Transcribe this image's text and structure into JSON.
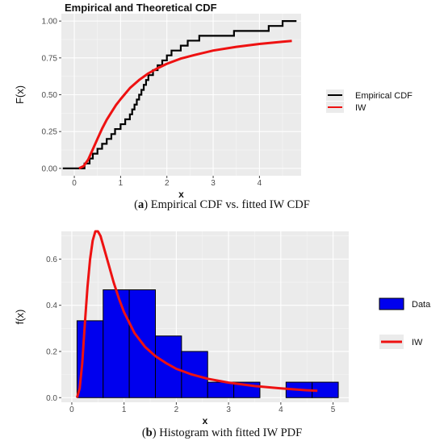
{
  "chart_data": [
    {
      "type": "line",
      "title": "Empirical and Theoretical CDF",
      "xlabel": "x",
      "ylabel": "F(x)",
      "xlim": [
        -0.28,
        4.9
      ],
      "ylim": [
        -0.05,
        1.05
      ],
      "x_ticks": [
        0,
        1,
        2,
        3,
        4
      ],
      "y_ticks": [
        0.0,
        0.25,
        0.5,
        0.75,
        1.0
      ],
      "y_tick_labels": [
        "0.00",
        "0.25",
        "0.50",
        "0.75",
        "1.00"
      ],
      "grid": true,
      "legend_position": "right",
      "series": [
        {
          "name": "Empirical CDF",
          "kind": "step",
          "color": "#000000",
          "x": [
            -0.25,
            0.22,
            0.33,
            0.4,
            0.5,
            0.6,
            0.7,
            0.8,
            0.88,
            1.0,
            1.1,
            1.2,
            1.25,
            1.3,
            1.35,
            1.4,
            1.45,
            1.5,
            1.55,
            1.6,
            1.7,
            1.8,
            1.9,
            2.0,
            2.1,
            2.2,
            2.3,
            2.35,
            2.45,
            2.55,
            2.7,
            3.45,
            4.2,
            4.5,
            4.8
          ],
          "y": [
            0.0,
            0.033,
            0.067,
            0.1,
            0.133,
            0.167,
            0.2,
            0.233,
            0.267,
            0.3,
            0.333,
            0.367,
            0.4,
            0.433,
            0.467,
            0.5,
            0.533,
            0.567,
            0.6,
            0.633,
            0.667,
            0.7,
            0.733,
            0.767,
            0.8,
            0.8,
            0.833,
            0.833,
            0.867,
            0.867,
            0.9,
            0.933,
            0.967,
            1.0,
            1.0
          ]
        },
        {
          "name": "IW",
          "kind": "curve",
          "color": "#ee1111",
          "x": [
            0.1,
            0.2,
            0.3,
            0.4,
            0.5,
            0.6,
            0.7,
            0.8,
            0.9,
            1.0,
            1.2,
            1.4,
            1.6,
            1.8,
            2.0,
            2.3,
            2.6,
            3.0,
            3.5,
            4.0,
            4.5,
            4.7
          ],
          "y": [
            0.0,
            0.015,
            0.06,
            0.13,
            0.2,
            0.27,
            0.33,
            0.38,
            0.43,
            0.47,
            0.545,
            0.6,
            0.645,
            0.68,
            0.71,
            0.745,
            0.77,
            0.8,
            0.825,
            0.845,
            0.86,
            0.865
          ]
        }
      ]
    },
    {
      "type": "bar",
      "title": "",
      "xlabel": "x",
      "ylabel": "f(x)",
      "xlim": [
        -0.2,
        5.3
      ],
      "ylim": [
        -0.02,
        0.72
      ],
      "x_ticks": [
        0,
        1,
        2,
        3,
        4,
        5
      ],
      "y_ticks": [
        0.0,
        0.2,
        0.4,
        0.6
      ],
      "y_tick_labels": [
        "0.0",
        "0.2",
        "0.4",
        "0.6"
      ],
      "grid": true,
      "legend_position": "right",
      "series": [
        {
          "name": "Data",
          "kind": "histogram",
          "color": "#0000ee",
          "bins": [
            [
              0.1,
              0.6
            ],
            [
              0.6,
              1.1
            ],
            [
              1.1,
              1.6
            ],
            [
              1.6,
              2.1
            ],
            [
              2.1,
              2.6
            ],
            [
              2.6,
              3.1
            ],
            [
              3.1,
              3.6
            ],
            [
              3.6,
              4.1
            ],
            [
              4.1,
              4.6
            ],
            [
              4.6,
              5.1
            ]
          ],
          "values": [
            0.333,
            0.467,
            0.467,
            0.267,
            0.2,
            0.067,
            0.067,
            0.0,
            0.067,
            0.067
          ]
        },
        {
          "name": "IW",
          "kind": "curve",
          "color": "#ee1111",
          "x": [
            0.1,
            0.15,
            0.2,
            0.25,
            0.3,
            0.35,
            0.4,
            0.45,
            0.5,
            0.55,
            0.6,
            0.7,
            0.8,
            0.9,
            1.0,
            1.2,
            1.4,
            1.6,
            1.8,
            2.0,
            2.3,
            2.6,
            3.0,
            3.5,
            4.0,
            4.5,
            4.7
          ],
          "y": [
            0.0,
            0.04,
            0.15,
            0.32,
            0.48,
            0.6,
            0.68,
            0.72,
            0.72,
            0.7,
            0.66,
            0.58,
            0.5,
            0.43,
            0.37,
            0.28,
            0.22,
            0.18,
            0.15,
            0.125,
            0.1,
            0.082,
            0.065,
            0.05,
            0.04,
            0.032,
            0.03
          ]
        }
      ]
    }
  ],
  "captions": [
    {
      "label": "(a)",
      "letter": "a",
      "text": " Empirical CDF vs. fitted IW CDF"
    },
    {
      "label": "(b)",
      "letter": "b",
      "text": " Histogram with fitted IW PDF"
    }
  ]
}
